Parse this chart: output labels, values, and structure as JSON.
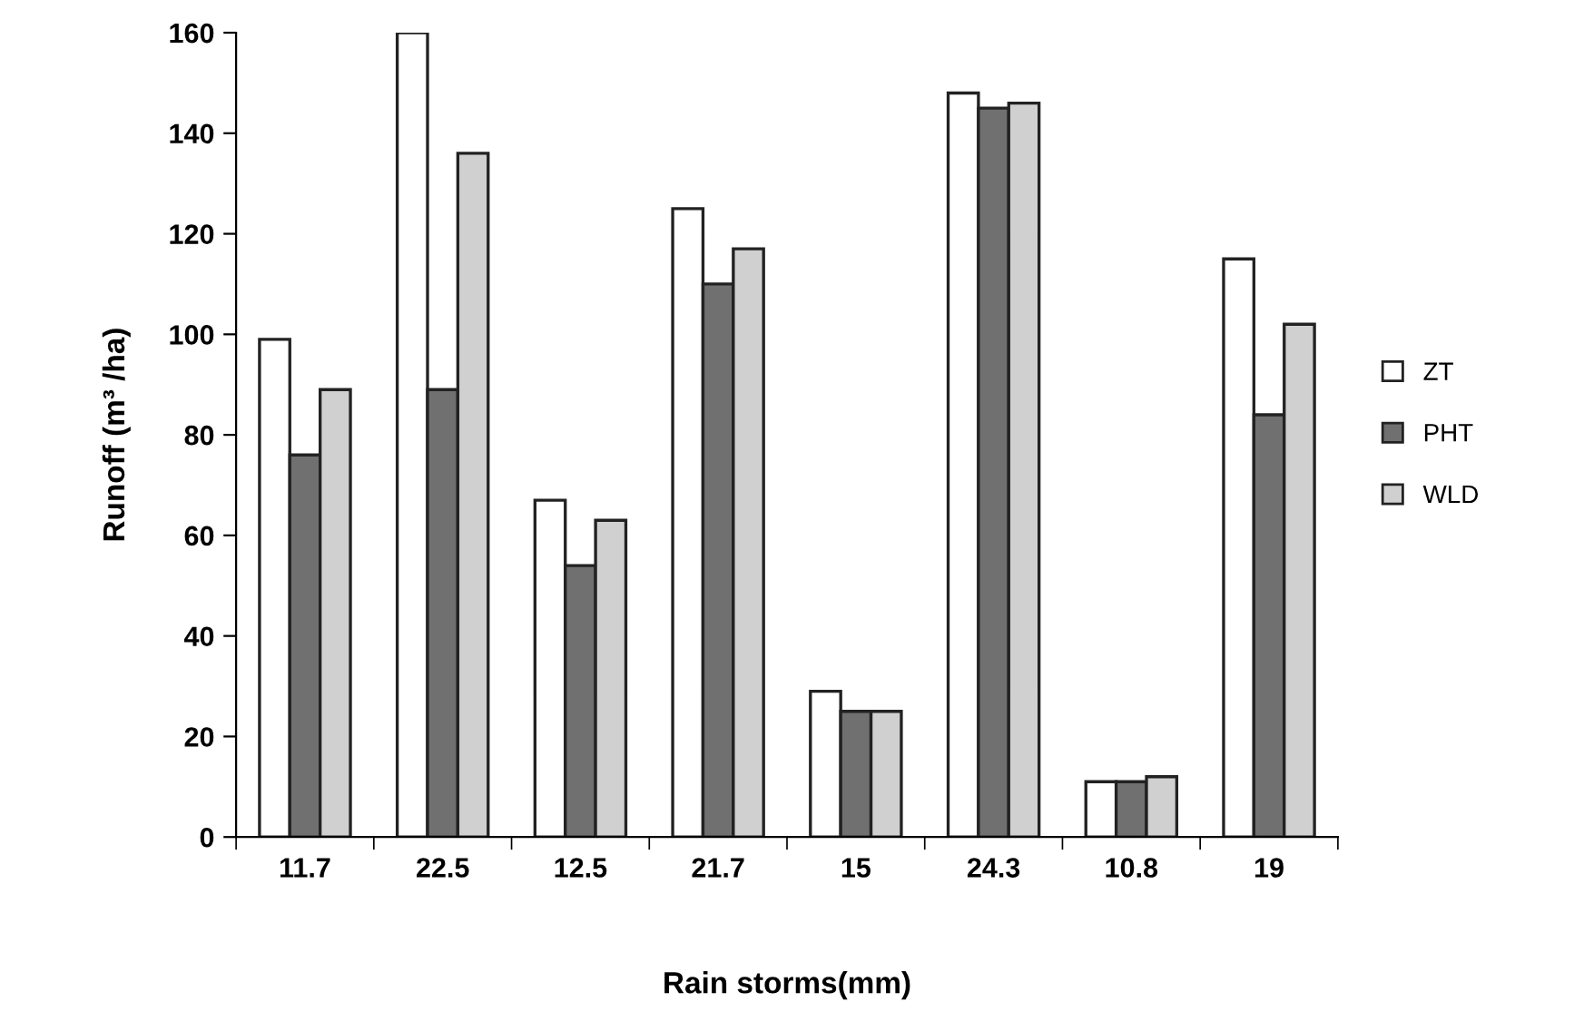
{
  "chart_data": {
    "type": "bar",
    "xlabel": "Rain storms(mm)",
    "ylabel": "Runoff (m³ /ha)",
    "categories": [
      "11.7",
      "22.5",
      "12.5",
      "21.7",
      "15",
      "24.3",
      "10.8",
      "19"
    ],
    "series": [
      {
        "name": "ZT",
        "color": "#ffffff",
        "values": [
          99,
          160,
          67,
          125,
          29,
          148,
          11,
          115
        ]
      },
      {
        "name": "PHT",
        "color": "#707070",
        "values": [
          76,
          89,
          54,
          110,
          25,
          145,
          11,
          84
        ]
      },
      {
        "name": "WLD",
        "color": "#d0d0d0",
        "values": [
          89,
          136,
          63,
          117,
          25,
          146,
          12,
          102
        ]
      }
    ],
    "ylim": [
      0,
      160
    ],
    "yticks": [
      0,
      20,
      40,
      60,
      80,
      100,
      120,
      140,
      160
    ],
    "grid": false,
    "legend": "right"
  }
}
